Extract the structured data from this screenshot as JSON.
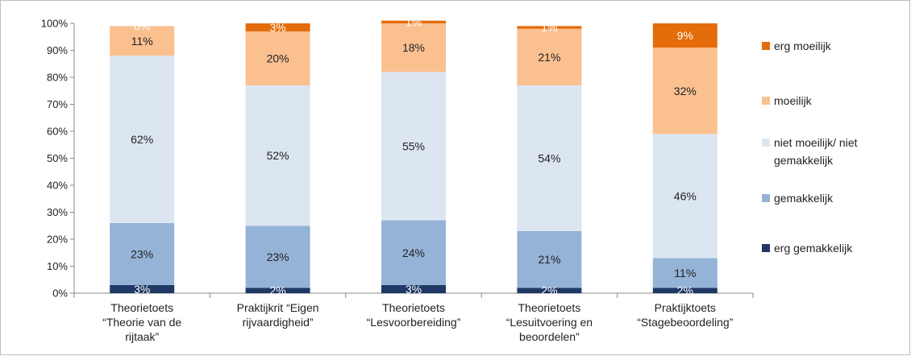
{
  "chart_data": {
    "type": "bar",
    "stacked": true,
    "title": "",
    "xlabel": "",
    "ylabel": "",
    "ylim": [
      0,
      100
    ],
    "yticks": [
      "0%",
      "10%",
      "20%",
      "30%",
      "40%",
      "50%",
      "60%",
      "70%",
      "80%",
      "90%",
      "100%"
    ],
    "grid": false,
    "legend_position": "right",
    "categories": [
      [
        "Theorietoets",
        "“Theorie van de",
        "rijtaak”"
      ],
      [
        "Praktijkrit “Eigen",
        "rijvaardigheid”"
      ],
      [
        "Theorietoets",
        "“Lesvoorbereiding”"
      ],
      [
        "Theorietoets",
        "“Lesuitvoering en",
        "beoordelen”"
      ],
      [
        "Praktijktoets",
        "“Stagebeoordeling”"
      ]
    ],
    "series": [
      {
        "name": "erg gemakkelijk",
        "color": "#1f3864",
        "label_color": "#ffffff",
        "values": [
          3,
          2,
          3,
          2,
          2
        ],
        "labels": [
          "3%",
          "2%",
          "3%",
          "2%",
          "2%"
        ]
      },
      {
        "name": "gemakkelijk",
        "color": "#95b3d7",
        "label_color": "#222222",
        "values": [
          23,
          23,
          24,
          21,
          11
        ],
        "labels": [
          "23%",
          "23%",
          "24%",
          "21%",
          "11%"
        ]
      },
      {
        "name": "niet moeilijk/ niet gemakkelijk",
        "legend_lines": [
          "niet moeilijk/ niet",
          "gemakkelijk"
        ],
        "color": "#dce6f1",
        "label_color": "#222222",
        "values": [
          62,
          52,
          55,
          54,
          46
        ],
        "labels": [
          "62%",
          "52%",
          "55%",
          "54%",
          "46%"
        ]
      },
      {
        "name": "moeilijk",
        "color": "#fac090",
        "label_color": "#222222",
        "values": [
          11,
          20,
          18,
          21,
          32
        ],
        "labels": [
          "11%",
          "20%",
          "18%",
          "21%",
          "32%"
        ]
      },
      {
        "name": "erg moeilijk",
        "color": "#e46c0a",
        "label_color": "#ffffff",
        "values": [
          0,
          3,
          1,
          1,
          9
        ],
        "labels": [
          "0%",
          "3%",
          "1%",
          "1%",
          "9%"
        ]
      }
    ],
    "legend_order": [
      "erg moeilijk",
      "moeilijk",
      "niet moeilijk/ niet gemakkelijk",
      "gemakkelijk",
      "erg gemakkelijk"
    ]
  }
}
